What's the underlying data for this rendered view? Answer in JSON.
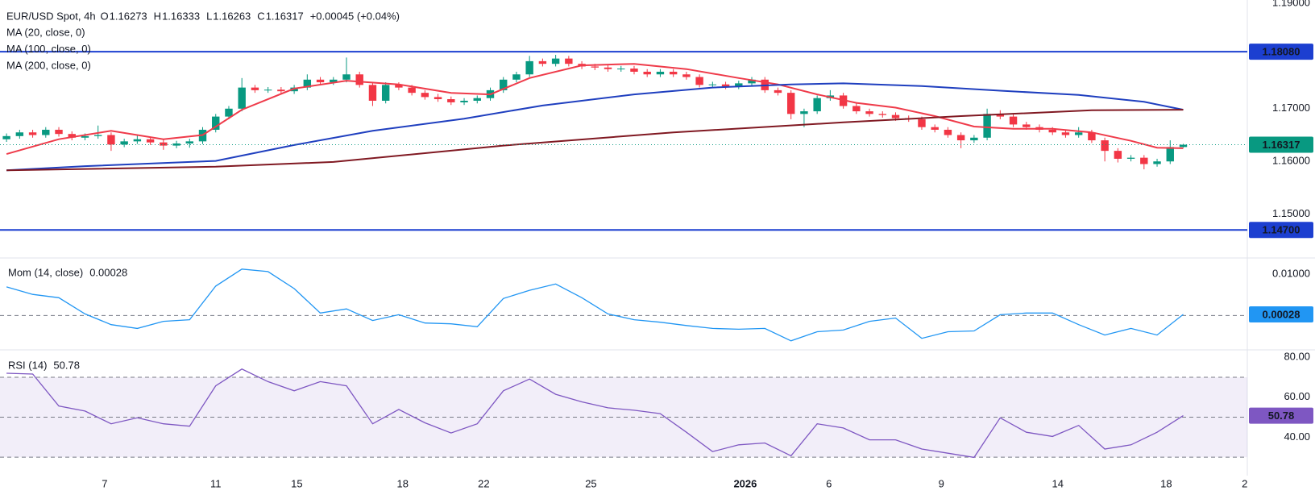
{
  "chart_data": [
    {
      "type": "candlestick",
      "title": "EUR/USD Spot, 4h",
      "ohlc_labels": [
        "O",
        "H",
        "L",
        "C"
      ],
      "change": "+0.00045 (+0.04%)",
      "up_color": "#089981",
      "down_color": "#f23645",
      "xlim": [
        -0.5,
        94.9
      ],
      "ylim": [
        1.142,
        1.1906
      ],
      "yticks": [
        {
          "value": 1.19,
          "label": "1.19000"
        },
        {
          "value": 1.17,
          "label": "1.17000"
        },
        {
          "value": 1.16,
          "label": "1.16000"
        },
        {
          "value": 1.15,
          "label": "1.15000"
        }
      ],
      "hlines": [
        {
          "value": 1.1808,
          "label": "1.18080"
        },
        {
          "value": 1.147,
          "label": "1.14700"
        }
      ],
      "hline_color": "#1c3fd0",
      "candles": [
        [
          1.1642,
          1.1653,
          1.1637,
          1.1648
        ],
        [
          1.1648,
          1.166,
          1.1643,
          1.1655
        ],
        [
          1.1655,
          1.166,
          1.1645,
          1.165
        ],
        [
          1.165,
          1.1665,
          1.1645,
          1.166
        ],
        [
          1.166,
          1.1665,
          1.1647,
          1.1652
        ],
        [
          1.1652,
          1.1657,
          1.164,
          1.1645
        ],
        [
          1.1645,
          1.1653,
          1.164,
          1.1648
        ],
        [
          1.1648,
          1.1668,
          1.1643,
          1.165
        ],
        [
          1.165,
          1.1655,
          1.162,
          1.1632
        ],
        [
          1.1632,
          1.1643,
          1.1627,
          1.1638
        ],
        [
          1.1638,
          1.165,
          1.1633,
          1.1642
        ],
        [
          1.1642,
          1.1647,
          1.1631,
          1.1636
        ],
        [
          1.1636,
          1.1641,
          1.1622,
          1.163
        ],
        [
          1.163,
          1.1639,
          1.1625,
          1.1634
        ],
        [
          1.1634,
          1.1643,
          1.1626,
          1.1638
        ],
        [
          1.1638,
          1.1665,
          1.1633,
          1.166
        ],
        [
          1.166,
          1.169,
          1.1655,
          1.1685
        ],
        [
          1.1685,
          1.1705,
          1.168,
          1.17
        ],
        [
          1.17,
          1.1758,
          1.1695,
          1.174
        ],
        [
          1.174,
          1.1745,
          1.173,
          1.1735
        ],
        [
          1.1735,
          1.1741,
          1.173,
          1.1736
        ],
        [
          1.1736,
          1.1741,
          1.1728,
          1.1733
        ],
        [
          1.1733,
          1.1745,
          1.1728,
          1.174
        ],
        [
          1.174,
          1.1765,
          1.1735,
          1.1755
        ],
        [
          1.1755,
          1.176,
          1.1745,
          1.175
        ],
        [
          1.175,
          1.176,
          1.1745,
          1.1755
        ],
        [
          1.1755,
          1.1797,
          1.175,
          1.1765
        ],
        [
          1.1765,
          1.177,
          1.174,
          1.1745
        ],
        [
          1.1745,
          1.175,
          1.1705,
          1.1715
        ],
        [
          1.1715,
          1.175,
          1.171,
          1.1745
        ],
        [
          1.1745,
          1.175,
          1.1735,
          1.174
        ],
        [
          1.174,
          1.1745,
          1.1725,
          1.173
        ],
        [
          1.173,
          1.1735,
          1.1717,
          1.1722
        ],
        [
          1.1722,
          1.1728,
          1.1713,
          1.1718
        ],
        [
          1.1718,
          1.1723,
          1.1707,
          1.1712
        ],
        [
          1.1712,
          1.172,
          1.1707,
          1.1715
        ],
        [
          1.1715,
          1.1725,
          1.171,
          1.172
        ],
        [
          1.172,
          1.174,
          1.1715,
          1.1735
        ],
        [
          1.1735,
          1.176,
          1.173,
          1.1755
        ],
        [
          1.1755,
          1.177,
          1.175,
          1.1765
        ],
        [
          1.1765,
          1.18,
          1.176,
          1.179
        ],
        [
          1.179,
          1.1795,
          1.178,
          1.1785
        ],
        [
          1.1785,
          1.1802,
          1.178,
          1.1795
        ],
        [
          1.1795,
          1.18,
          1.178,
          1.1785
        ],
        [
          1.1785,
          1.179,
          1.1775,
          1.178
        ],
        [
          1.178,
          1.1785,
          1.1773,
          1.1778
        ],
        [
          1.1778,
          1.1783,
          1.177,
          1.1775
        ],
        [
          1.1775,
          1.1781,
          1.177,
          1.1776
        ],
        [
          1.1776,
          1.1781,
          1.1765,
          1.177
        ],
        [
          1.177,
          1.1775,
          1.176,
          1.1765
        ],
        [
          1.1765,
          1.1775,
          1.176,
          1.177
        ],
        [
          1.177,
          1.1775,
          1.176,
          1.1765
        ],
        [
          1.1765,
          1.177,
          1.1755,
          1.176
        ],
        [
          1.176,
          1.1765,
          1.174,
          1.1745
        ],
        [
          1.1745,
          1.1751,
          1.174,
          1.1746
        ],
        [
          1.1746,
          1.1751,
          1.1737,
          1.1742
        ],
        [
          1.1742,
          1.1753,
          1.1737,
          1.1748
        ],
        [
          1.1748,
          1.176,
          1.1743,
          1.1755
        ],
        [
          1.1755,
          1.176,
          1.173,
          1.1735
        ],
        [
          1.1735,
          1.174,
          1.1725,
          1.173
        ],
        [
          1.173,
          1.1735,
          1.168,
          1.169
        ],
        [
          1.169,
          1.17,
          1.1665,
          1.1695
        ],
        [
          1.1695,
          1.1725,
          1.169,
          1.172
        ],
        [
          1.172,
          1.1735,
          1.1715,
          1.1725
        ],
        [
          1.1725,
          1.173,
          1.17,
          1.1705
        ],
        [
          1.1705,
          1.171,
          1.169,
          1.1695
        ],
        [
          1.1695,
          1.17,
          1.1685,
          1.169
        ],
        [
          1.169,
          1.1695,
          1.1683,
          1.1688
        ],
        [
          1.1688,
          1.1693,
          1.1677,
          1.1682
        ],
        [
          1.1682,
          1.1687,
          1.1675,
          1.168
        ],
        [
          1.168,
          1.1685,
          1.166,
          1.1665
        ],
        [
          1.1665,
          1.167,
          1.1655,
          1.166
        ],
        [
          1.166,
          1.1665,
          1.1645,
          1.165
        ],
        [
          1.165,
          1.1655,
          1.1625,
          1.164
        ],
        [
          1.164,
          1.165,
          1.1635,
          1.1645
        ],
        [
          1.1645,
          1.17,
          1.164,
          1.169
        ],
        [
          1.169,
          1.1697,
          1.168,
          1.1685
        ],
        [
          1.1685,
          1.169,
          1.1665,
          1.167
        ],
        [
          1.167,
          1.1675,
          1.166,
          1.1665
        ],
        [
          1.1665,
          1.167,
          1.1655,
          1.166
        ],
        [
          1.166,
          1.1665,
          1.165,
          1.1655
        ],
        [
          1.1655,
          1.166,
          1.1645,
          1.165
        ],
        [
          1.165,
          1.1665,
          1.1645,
          1.1655
        ],
        [
          1.1655,
          1.166,
          1.1635,
          1.164
        ],
        [
          1.164,
          1.1645,
          1.16,
          1.162
        ],
        [
          1.162,
          1.1625,
          1.1598,
          1.1605
        ],
        [
          1.1605,
          1.1612,
          1.16,
          1.1607
        ],
        [
          1.1607,
          1.1612,
          1.1585,
          1.1595
        ],
        [
          1.1595,
          1.1605,
          1.159,
          1.16
        ],
        [
          1.16,
          1.164,
          1.1595,
          1.16273
        ],
        [
          1.16273,
          1.16333,
          1.16263,
          1.16317
        ]
      ],
      "series": [
        {
          "name": "MA (20, close, 0)",
          "color": "#ef3b4a",
          "x": [
            0,
            4,
            8,
            12,
            15,
            18,
            22,
            26,
            30,
            34,
            37,
            40,
            44,
            48,
            52,
            56,
            59,
            62,
            65,
            68,
            71,
            74,
            77,
            80,
            83,
            86,
            88,
            90
          ],
          "values": [
            1.1614,
            1.1642,
            1.1658,
            1.1642,
            1.165,
            1.1698,
            1.1738,
            1.1753,
            1.1746,
            1.173,
            1.1727,
            1.1758,
            1.1782,
            1.1785,
            1.1775,
            1.1758,
            1.1746,
            1.1727,
            1.1711,
            1.1702,
            1.1686,
            1.1666,
            1.1662,
            1.1662,
            1.1655,
            1.1639,
            1.1626,
            1.1625
          ]
        },
        {
          "name": "MA (100, close, 0)",
          "color": "#1f3fbf",
          "x": [
            0,
            6,
            16,
            22,
            28,
            35,
            41,
            48,
            54,
            60,
            64,
            70,
            76,
            82,
            87,
            90
          ],
          "values": [
            1.1583,
            1.1591,
            1.1601,
            1.1631,
            1.1658,
            1.1681,
            1.1706,
            1.1727,
            1.174,
            1.1746,
            1.1748,
            1.1743,
            1.1734,
            1.1726,
            1.1713,
            1.1698
          ]
        },
        {
          "name": "MA (200, close, 0)",
          "color": "#801922",
          "x": [
            0,
            16,
            25,
            38,
            51,
            64,
            73,
            83,
            90
          ],
          "values": [
            1.1583,
            1.159,
            1.1599,
            1.163,
            1.1655,
            1.1674,
            1.1686,
            1.1697,
            1.1698
          ]
        }
      ]
    },
    {
      "type": "line",
      "title": "Mom (14, close)",
      "color": "#2196f3",
      "xlim": [
        -0.5,
        94.9
      ],
      "ylim": [
        -0.0075,
        0.0135
      ],
      "yticks": [
        {
          "value": 0.01,
          "label": "0.01000"
        }
      ],
      "levels": [
        0
      ],
      "x": [
        0,
        2,
        4,
        6,
        8,
        10,
        12,
        14,
        16,
        18,
        20,
        22,
        24,
        26,
        28,
        30,
        32,
        34,
        36,
        38,
        40,
        42,
        44,
        46,
        48,
        50,
        52,
        54,
        56,
        58,
        60,
        62,
        64,
        66,
        68,
        70,
        72,
        74,
        76,
        78,
        80,
        82,
        84,
        86,
        88,
        90
      ],
      "values": [
        0.0069,
        0.0051,
        0.0043,
        0.0004,
        -0.0022,
        -0.0031,
        -0.0014,
        -0.001,
        0.0071,
        0.0112,
        0.0106,
        0.0065,
        0.0006,
        0.0016,
        -0.0012,
        0.0002,
        -0.0018,
        -0.002,
        -0.0027,
        0.0041,
        0.0061,
        0.0076,
        0.0043,
        0.0004,
        -0.001,
        -0.0016,
        -0.0024,
        -0.0031,
        -0.0033,
        -0.0031,
        -0.0061,
        -0.0039,
        -0.0035,
        -0.0014,
        -0.0006,
        -0.0055,
        -0.0039,
        -0.0037,
        0.0002,
        0.0006,
        0.0006,
        -0.0022,
        -0.0047,
        -0.0031,
        -0.0047,
        0.00028
      ]
    },
    {
      "type": "line",
      "title": "RSI (14)",
      "color": "#7e57c2",
      "xlim": [
        -0.5,
        94.9
      ],
      "ylim": [
        23.6,
        82.5
      ],
      "yticks": [
        {
          "value": 80,
          "label": "80.00"
        },
        {
          "value": 60,
          "label": "60.00"
        },
        {
          "value": 40,
          "label": "40.00"
        }
      ],
      "band": [
        30,
        70
      ],
      "levels": [
        50
      ],
      "xticks": [
        {
          "value": 7.5,
          "label": "7"
        },
        {
          "value": 16,
          "label": "11"
        },
        {
          "value": 22.2,
          "label": "15"
        },
        {
          "value": 30.3,
          "label": "18"
        },
        {
          "value": 36.5,
          "label": "22"
        },
        {
          "value": 44.7,
          "label": "25"
        },
        {
          "value": 56.5,
          "label": "2026"
        },
        {
          "value": 62.9,
          "label": "6"
        },
        {
          "value": 71.5,
          "label": "9"
        },
        {
          "value": 80.4,
          "label": "14"
        },
        {
          "value": 88.7,
          "label": "18"
        },
        {
          "value": 94.7,
          "label": "2"
        }
      ],
      "x": [
        0,
        2,
        4,
        6,
        8,
        10,
        12,
        14,
        16,
        18,
        20,
        22,
        24,
        26,
        28,
        30,
        32,
        34,
        36,
        38,
        40,
        42,
        44,
        46,
        48,
        50,
        52,
        54,
        56,
        58,
        60,
        62,
        64,
        66,
        68,
        70,
        72,
        74,
        76,
        78,
        80,
        82,
        84,
        86,
        88,
        90
      ],
      "values": [
        72,
        71.6,
        55.6,
        53.1,
        46.7,
        49.7,
        46.7,
        45.5,
        65.7,
        74.1,
        67.8,
        63.2,
        67.8,
        65.7,
        46.7,
        53.9,
        47.2,
        42.1,
        46.7,
        63.2,
        69.1,
        61.5,
        57.7,
        54.7,
        53.5,
        51.8,
        42.5,
        32.8,
        36.2,
        37.1,
        30.7,
        46.7,
        44.6,
        38.7,
        38.7,
        34.1,
        32,
        29.9,
        49.7,
        42.5,
        40.4,
        45.9,
        34.1,
        36.2,
        42.5,
        50.78
      ]
    }
  ]
}
